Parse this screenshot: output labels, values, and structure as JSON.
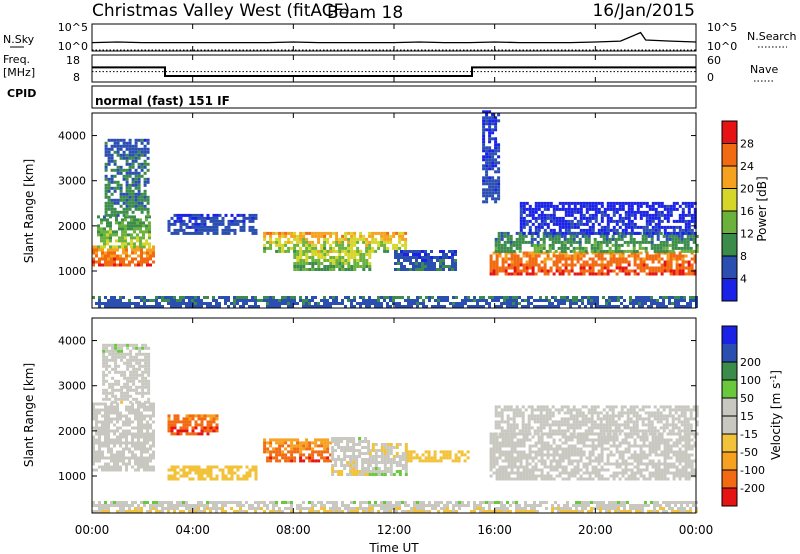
{
  "header": {
    "title": "Christmas Valley West (fitACF)",
    "beam": "Beam 18",
    "date": "16/Jan/2015"
  },
  "strip_nsky": {
    "label": "N.Sky",
    "ticks_left": [
      "10^5",
      "10^0"
    ],
    "right_label": "N.Search",
    "ticks_right": [
      "10^5",
      "10^0"
    ]
  },
  "strip_freq": {
    "label_line1": "Freq.",
    "label_line2": "[MHz]",
    "ticks_left": [
      "18",
      "8"
    ],
    "right_label": "Nave",
    "ticks_right": [
      "60",
      "0"
    ]
  },
  "cpid": {
    "label": "CPID",
    "value": "normal (fast) 151 IF"
  },
  "time_axis": {
    "label": "Time UT",
    "ticks": [
      "00:00",
      "04:00",
      "08:00",
      "12:00",
      "16:00",
      "20:00",
      "00:00"
    ]
  },
  "colors": {
    "power": [
      "#1a22e6",
      "#2a4fb0",
      "#3b8c4a",
      "#6ab23c",
      "#d6d62a",
      "#f6a11f",
      "#f26a12",
      "#e51313"
    ],
    "velocity": [
      "#e51313",
      "#f26a12",
      "#f6a11f",
      "#f2c23a",
      "#c8c8c0",
      "#c8c8c0",
      "#6ac83c",
      "#3b8c4a",
      "#2a4fb0",
      "#1a22e6"
    ]
  },
  "chart_data": [
    {
      "type": "line",
      "name_key": "N.Sky / N.Search",
      "x_unit": "hours UT",
      "xlim": [
        0,
        24
      ],
      "log_y": true,
      "series": [
        {
          "name": "N.Sky",
          "style": "solid",
          "x": [
            0,
            1,
            2,
            3,
            4,
            5,
            6,
            7,
            8,
            9,
            10,
            11,
            12,
            13,
            14,
            15,
            16,
            17,
            18,
            19,
            20,
            21,
            21.8,
            22,
            23,
            24
          ],
          "y": [
            30,
            40,
            30,
            30,
            30,
            30,
            30,
            30,
            40,
            30,
            30,
            30,
            30,
            40,
            30,
            30,
            40,
            30,
            30,
            30,
            40,
            60,
            3000,
            100,
            60,
            40
          ]
        },
        {
          "name": "N.Search",
          "style": "dotted",
          "x": [
            0,
            24
          ],
          "y": [
            1,
            1
          ]
        }
      ]
    },
    {
      "type": "line",
      "name_key": "Freq. / Nave",
      "x_unit": "hours UT",
      "xlim": [
        0,
        24
      ],
      "ylim_left": [
        8,
        18
      ],
      "ylim_right": [
        0,
        60
      ],
      "series": [
        {
          "name": "Freq.",
          "axis": "left",
          "style": "solid",
          "x": [
            0,
            2.9,
            2.9,
            15.1,
            15.1,
            24
          ],
          "y": [
            15,
            15,
            10.2,
            10.2,
            15,
            15
          ]
        },
        {
          "name": "Nave",
          "axis": "right",
          "style": "dotted",
          "x": [
            0,
            24
          ],
          "y": [
            28,
            28
          ]
        }
      ]
    },
    {
      "type": "heatmap",
      "name_key": "power",
      "x_unit": "hours UT",
      "xlim": [
        0,
        24
      ],
      "ylabel": "Slant Range [km]",
      "ylim": [
        180,
        4500
      ],
      "y_ticks": [
        1000,
        2000,
        3000,
        4000
      ],
      "colorbar_label": "Power [dB]",
      "colorbar_ticks": [
        4,
        8,
        12,
        16,
        20,
        24,
        28
      ],
      "colorbar_range": [
        0,
        32
      ],
      "regions": [
        {
          "t0": 0.0,
          "t1": 2.4,
          "r0": 1100,
          "r1": 1500,
          "v0": 27,
          "v1": 22
        },
        {
          "t0": 0.2,
          "t1": 2.3,
          "r0": 1500,
          "r1": 2200,
          "v0": 16,
          "v1": 10
        },
        {
          "t0": 0.5,
          "t1": 2.2,
          "r0": 2200,
          "r1": 3900,
          "v0": 10,
          "v1": 6
        },
        {
          "t0": 3.0,
          "t1": 6.5,
          "r0": 1800,
          "r1": 2200,
          "v0": 6,
          "v1": 4
        },
        {
          "t0": 6.8,
          "t1": 12.5,
          "r0": 1400,
          "r1": 1800,
          "v0": 14,
          "v1": 22
        },
        {
          "t0": 8.0,
          "t1": 11.0,
          "r0": 1000,
          "r1": 1400,
          "v0": 12,
          "v1": 18
        },
        {
          "t0": 12.0,
          "t1": 14.5,
          "r0": 1000,
          "r1": 1400,
          "v0": 8,
          "v1": 4
        },
        {
          "t0": 15.8,
          "t1": 24.0,
          "r0": 900,
          "r1": 1400,
          "v0": 28,
          "v1": 24
        },
        {
          "t0": 16.0,
          "t1": 24.0,
          "r0": 1400,
          "r1": 1800,
          "v0": 12,
          "v1": 8
        },
        {
          "t0": 17.0,
          "t1": 24.0,
          "r0": 1800,
          "r1": 2500,
          "v0": 4,
          "v1": 2
        },
        {
          "t0": 15.5,
          "t1": 16.2,
          "r0": 2500,
          "r1": 4500,
          "v0": 6,
          "v1": 3
        },
        {
          "t0": 0.0,
          "t1": 24.0,
          "r0": 180,
          "r1": 400,
          "v0": 6,
          "v1": 8
        }
      ]
    },
    {
      "type": "heatmap",
      "name_key": "velocity",
      "x_unit": "hours UT",
      "xlim": [
        0,
        24
      ],
      "ylabel": "Slant Range [km]",
      "ylim": [
        180,
        4500
      ],
      "y_ticks": [
        1000,
        2000,
        3000,
        4000
      ],
      "colorbar_label": "Velocity [m s^-1]",
      "colorbar_ticks": [
        -200,
        -100,
        -50,
        -15,
        15,
        50,
        100,
        200
      ],
      "colorbar_range": [
        -250,
        250
      ],
      "regions": [
        {
          "t0": 0.0,
          "t1": 2.4,
          "r0": 1100,
          "r1": 2600,
          "v0": 0,
          "v1": 0
        },
        {
          "t0": 0.4,
          "t1": 2.2,
          "r0": 2600,
          "r1": 3900,
          "v0": -30,
          "v1": 40
        },
        {
          "t0": 3.0,
          "t1": 5.0,
          "r0": 1900,
          "r1": 2300,
          "v0": -210,
          "v1": -150
        },
        {
          "t0": 3.0,
          "t1": 6.5,
          "r0": 900,
          "r1": 1200,
          "v0": -70,
          "v1": -60
        },
        {
          "t0": 6.8,
          "t1": 9.5,
          "r0": 1300,
          "r1": 1800,
          "v0": -200,
          "v1": -120
        },
        {
          "t0": 9.5,
          "t1": 11.0,
          "r0": 1000,
          "r1": 1800,
          "v0": -60,
          "v1": 30
        },
        {
          "t0": 11.0,
          "t1": 12.5,
          "r0": 1000,
          "r1": 1700,
          "v0": 60,
          "v1": -70
        },
        {
          "t0": 12.5,
          "t1": 15.0,
          "r0": 1300,
          "r1": 1500,
          "v0": -70,
          "v1": -60
        },
        {
          "t0": 15.8,
          "t1": 24.0,
          "r0": 900,
          "r1": 1900,
          "v0": 0,
          "v1": 0
        },
        {
          "t0": 16.0,
          "t1": 24.0,
          "r0": 1900,
          "r1": 2500,
          "v0": 10,
          "v1": -10
        },
        {
          "t0": 0.0,
          "t1": 24.0,
          "r0": 180,
          "r1": 400,
          "v0": -60,
          "v1": 40
        }
      ]
    }
  ]
}
